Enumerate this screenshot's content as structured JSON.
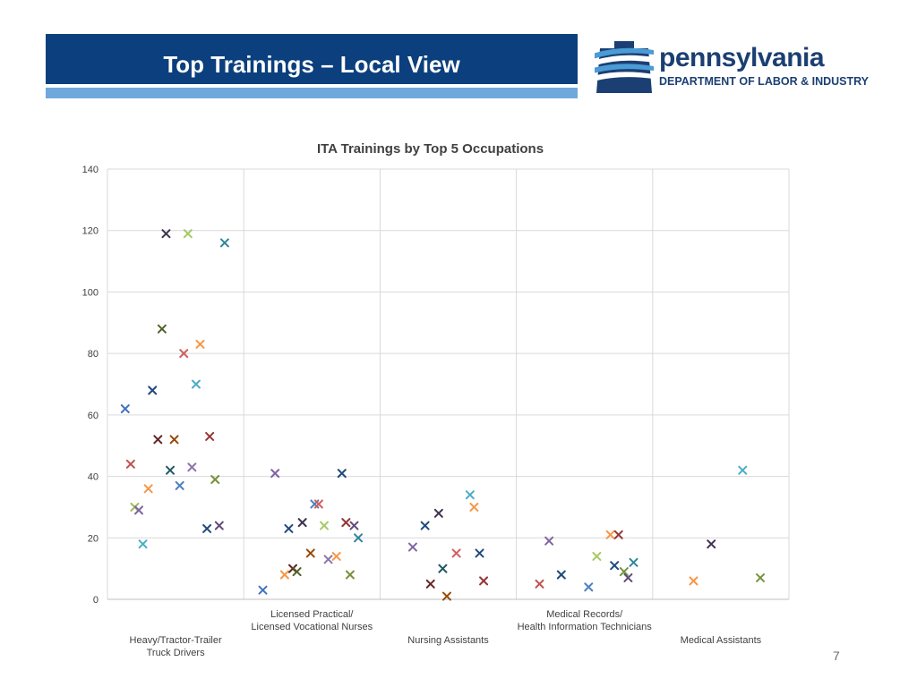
{
  "slide": {
    "title": "Top Trainings – Local View",
    "page_number": "7"
  },
  "logo": {
    "name": "pennsylvania",
    "department": "DEPARTMENT OF LABOR & INDUSTRY",
    "icon": "keystone-logo-icon",
    "colors": {
      "navy": "#1b3f73",
      "light_blue": "#4a9bd6"
    }
  },
  "colors": {
    "title_bar": "#0b3f7d",
    "accent_bar": "#6fa8dc"
  },
  "chart_data": {
    "type": "scatter",
    "title": "ITA Trainings by Top 5 Occupations",
    "xlabel": "",
    "ylabel": "",
    "ylim": [
      0,
      140
    ],
    "yticks": [
      0,
      20,
      40,
      60,
      80,
      100,
      120,
      140
    ],
    "grid": true,
    "marker": "x",
    "legend": "none",
    "categories": [
      {
        "label": [
          "Heavy/Tractor-Trailer",
          "Truck Drivers"
        ],
        "label_position": "bottom"
      },
      {
        "label": [
          "Licensed Practical/",
          "Licensed Vocational Nurses"
        ],
        "label_position": "top"
      },
      {
        "label": [
          "Nursing Assistants"
        ],
        "label_position": "bottom"
      },
      {
        "label": [
          "Medical Records/",
          "Health Information Technicians"
        ],
        "label_position": "top"
      },
      {
        "label": [
          "Medical Assistants"
        ],
        "label_position": "bottom"
      }
    ],
    "points": [
      {
        "category": 0,
        "offset": 0.13,
        "y": 62,
        "color": "#4472c4"
      },
      {
        "category": 0,
        "offset": 0.17,
        "y": 44,
        "color": "#c0504d"
      },
      {
        "category": 0,
        "offset": 0.2,
        "y": 30,
        "color": "#9bbb59"
      },
      {
        "category": 0,
        "offset": 0.23,
        "y": 29,
        "color": "#8064a2"
      },
      {
        "category": 0,
        "offset": 0.26,
        "y": 18,
        "color": "#4bacc6"
      },
      {
        "category": 0,
        "offset": 0.3,
        "y": 36,
        "color": "#f79646"
      },
      {
        "category": 0,
        "offset": 0.33,
        "y": 68,
        "color": "#1f497d"
      },
      {
        "category": 0,
        "offset": 0.37,
        "y": 52,
        "color": "#632523"
      },
      {
        "category": 0,
        "offset": 0.4,
        "y": 88,
        "color": "#4f6228"
      },
      {
        "category": 0,
        "offset": 0.43,
        "y": 119,
        "color": "#3f3151"
      },
      {
        "category": 0,
        "offset": 0.46,
        "y": 42,
        "color": "#215868"
      },
      {
        "category": 0,
        "offset": 0.49,
        "y": 52,
        "color": "#974806"
      },
      {
        "category": 0,
        "offset": 0.53,
        "y": 37,
        "color": "#4f81bd"
      },
      {
        "category": 0,
        "offset": 0.56,
        "y": 80,
        "color": "#d0605e"
      },
      {
        "category": 0,
        "offset": 0.59,
        "y": 119,
        "color": "#a5c963"
      },
      {
        "category": 0,
        "offset": 0.62,
        "y": 43,
        "color": "#8c76ab"
      },
      {
        "category": 0,
        "offset": 0.65,
        "y": 70,
        "color": "#4bacc6"
      },
      {
        "category": 0,
        "offset": 0.68,
        "y": 83,
        "color": "#f79646"
      },
      {
        "category": 0,
        "offset": 0.73,
        "y": 23,
        "color": "#1f497d"
      },
      {
        "category": 0,
        "offset": 0.75,
        "y": 53,
        "color": "#943634"
      },
      {
        "category": 0,
        "offset": 0.79,
        "y": 39,
        "color": "#76923c"
      },
      {
        "category": 0,
        "offset": 0.82,
        "y": 24,
        "color": "#5f497a"
      },
      {
        "category": 0,
        "offset": 0.86,
        "y": 116,
        "color": "#31859b"
      },
      {
        "category": 1,
        "offset": 0.14,
        "y": 3,
        "color": "#4472c4"
      },
      {
        "category": 1,
        "offset": 0.23,
        "y": 41,
        "color": "#8064a2"
      },
      {
        "category": 1,
        "offset": 0.3,
        "y": 8,
        "color": "#f79646"
      },
      {
        "category": 1,
        "offset": 0.33,
        "y": 23,
        "color": "#1f497d"
      },
      {
        "category": 1,
        "offset": 0.36,
        "y": 10,
        "color": "#632523"
      },
      {
        "category": 1,
        "offset": 0.39,
        "y": 9,
        "color": "#4f6228"
      },
      {
        "category": 1,
        "offset": 0.43,
        "y": 25,
        "color": "#3f3151"
      },
      {
        "category": 1,
        "offset": 0.49,
        "y": 15,
        "color": "#974806"
      },
      {
        "category": 1,
        "offset": 0.52,
        "y": 31,
        "color": "#4f81bd"
      },
      {
        "category": 1,
        "offset": 0.55,
        "y": 31,
        "color": "#d0605e"
      },
      {
        "category": 1,
        "offset": 0.59,
        "y": 24,
        "color": "#a5c963"
      },
      {
        "category": 1,
        "offset": 0.62,
        "y": 13,
        "color": "#8c76ab"
      },
      {
        "category": 1,
        "offset": 0.68,
        "y": 14,
        "color": "#f79646"
      },
      {
        "category": 1,
        "offset": 0.72,
        "y": 41,
        "color": "#1f497d"
      },
      {
        "category": 1,
        "offset": 0.75,
        "y": 25,
        "color": "#943634"
      },
      {
        "category": 1,
        "offset": 0.78,
        "y": 8,
        "color": "#76923c"
      },
      {
        "category": 1,
        "offset": 0.81,
        "y": 24,
        "color": "#5f497a"
      },
      {
        "category": 1,
        "offset": 0.84,
        "y": 20,
        "color": "#31859b"
      },
      {
        "category": 2,
        "offset": 0.24,
        "y": 17,
        "color": "#8064a2"
      },
      {
        "category": 2,
        "offset": 0.33,
        "y": 24,
        "color": "#1f497d"
      },
      {
        "category": 2,
        "offset": 0.37,
        "y": 5,
        "color": "#632523"
      },
      {
        "category": 2,
        "offset": 0.43,
        "y": 28,
        "color": "#3f3151"
      },
      {
        "category": 2,
        "offset": 0.46,
        "y": 10,
        "color": "#215868"
      },
      {
        "category": 2,
        "offset": 0.49,
        "y": 1,
        "color": "#974806"
      },
      {
        "category": 2,
        "offset": 0.56,
        "y": 15,
        "color": "#d0605e"
      },
      {
        "category": 2,
        "offset": 0.66,
        "y": 34,
        "color": "#4bacc6"
      },
      {
        "category": 2,
        "offset": 0.69,
        "y": 30,
        "color": "#f79646"
      },
      {
        "category": 2,
        "offset": 0.73,
        "y": 15,
        "color": "#1f497d"
      },
      {
        "category": 2,
        "offset": 0.76,
        "y": 6,
        "color": "#943634"
      },
      {
        "category": 3,
        "offset": 0.17,
        "y": 5,
        "color": "#c0504d"
      },
      {
        "category": 3,
        "offset": 0.24,
        "y": 19,
        "color": "#8064a2"
      },
      {
        "category": 3,
        "offset": 0.33,
        "y": 8,
        "color": "#1f497d"
      },
      {
        "category": 3,
        "offset": 0.53,
        "y": 4,
        "color": "#4f81bd"
      },
      {
        "category": 3,
        "offset": 0.59,
        "y": 14,
        "color": "#a5c963"
      },
      {
        "category": 3,
        "offset": 0.69,
        "y": 21,
        "color": "#f79646"
      },
      {
        "category": 3,
        "offset": 0.72,
        "y": 11,
        "color": "#1f497d"
      },
      {
        "category": 3,
        "offset": 0.75,
        "y": 21,
        "color": "#943634"
      },
      {
        "category": 3,
        "offset": 0.79,
        "y": 9,
        "color": "#76923c"
      },
      {
        "category": 3,
        "offset": 0.82,
        "y": 7,
        "color": "#5f497a"
      },
      {
        "category": 3,
        "offset": 0.86,
        "y": 12,
        "color": "#31859b"
      },
      {
        "category": 4,
        "offset": 0.3,
        "y": 6,
        "color": "#f79646"
      },
      {
        "category": 4,
        "offset": 0.43,
        "y": 18,
        "color": "#3f3151"
      },
      {
        "category": 4,
        "offset": 0.66,
        "y": 42,
        "color": "#4bacc6"
      },
      {
        "category": 4,
        "offset": 0.79,
        "y": 7,
        "color": "#76923c"
      }
    ]
  }
}
